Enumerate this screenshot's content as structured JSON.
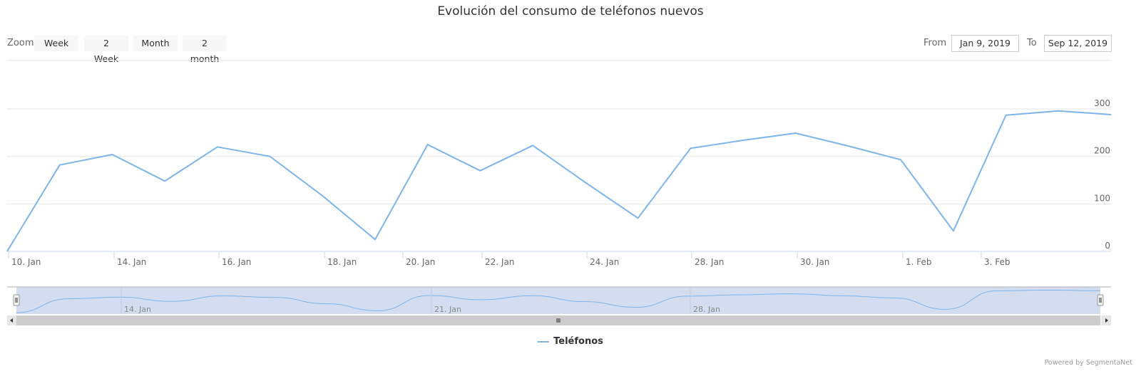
{
  "title": "Evolución del consumo de teléfonos nuevos",
  "zoom": {
    "label": "Zoom",
    "buttons": [
      "Week",
      "2 Week",
      "Month",
      "2 month"
    ]
  },
  "range": {
    "from_label": "From",
    "from_value": "Jan 9, 2019",
    "to_label": "To",
    "to_value": "Sep 12, 2019"
  },
  "colors": {
    "series": "#7cb5ec",
    "grid": "#e6e6e6",
    "navigator_fill": "#d2daee"
  },
  "chart_data": {
    "type": "line",
    "x_ticks": [
      "10. Jan",
      "14. Jan",
      "16. Jan",
      "18. Jan",
      "20. Jan",
      "22. Jan",
      "24. Jan",
      "28. Jan",
      "30. Jan",
      "1. Feb",
      "3. Feb"
    ],
    "y_ticks": [
      0,
      100,
      200,
      300
    ],
    "ylim": [
      0,
      300
    ],
    "grid": true,
    "series": [
      {
        "name": "Teléfonos",
        "values": [
          0,
          182,
          204,
          148,
          220,
          200,
          117,
          25,
          225,
          170,
          223,
          145,
          70,
          217,
          234,
          249,
          222,
          193,
          43,
          287,
          296,
          288
        ]
      }
    ],
    "navigator_labels": [
      "14. Jan",
      "21. Jan",
      "28. Jan"
    ]
  },
  "legend": {
    "label": "Teléfonos"
  },
  "credits": "Powered by SegmentaNet"
}
